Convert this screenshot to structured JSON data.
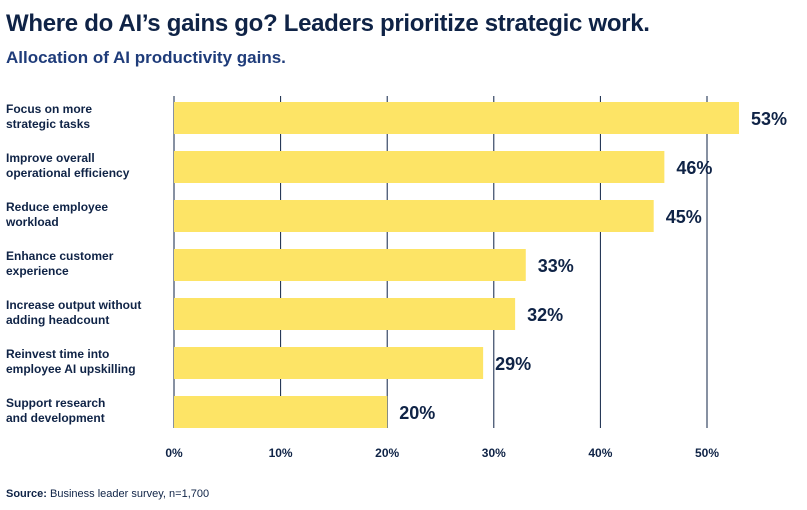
{
  "title": "Where do AI’s gains go? Leaders prioritize strategic work.",
  "subtitle": "Allocation of AI productivity gains.",
  "source": {
    "label": "Source:",
    "text": "Business leader survey, n=1,700"
  },
  "colors": {
    "bar": "#fde466",
    "text": "#0f2346",
    "subtitle": "#1f3c7a",
    "grid": "#0f2346"
  },
  "chart_data": {
    "type": "bar",
    "orientation": "horizontal",
    "title": "Where do AI’s gains go? Leaders prioritize strategic work.",
    "subtitle": "Allocation of AI productivity gains.",
    "categories": [
      [
        "Focus on more",
        "strategic tasks"
      ],
      [
        "Improve overall",
        "operational efficiency"
      ],
      [
        "Reduce employee",
        "workload"
      ],
      [
        "Enhance customer",
        "experience"
      ],
      [
        "Increase output without",
        "adding headcount"
      ],
      [
        "Reinvest time into",
        "employee AI upskilling"
      ],
      [
        "Support research",
        "and development"
      ]
    ],
    "values": [
      53,
      46,
      45,
      33,
      32,
      29,
      20
    ],
    "value_labels": [
      "53%",
      "46%",
      "45%",
      "33%",
      "32%",
      "29%",
      "20%"
    ],
    "xlim": [
      0,
      50
    ],
    "xticks": [
      0,
      10,
      20,
      30,
      40,
      50
    ],
    "xtick_labels": [
      "0%",
      "10%",
      "20%",
      "30%",
      "40%",
      "50%"
    ],
    "xlabel": "",
    "ylabel": "",
    "grid": "vertical"
  }
}
